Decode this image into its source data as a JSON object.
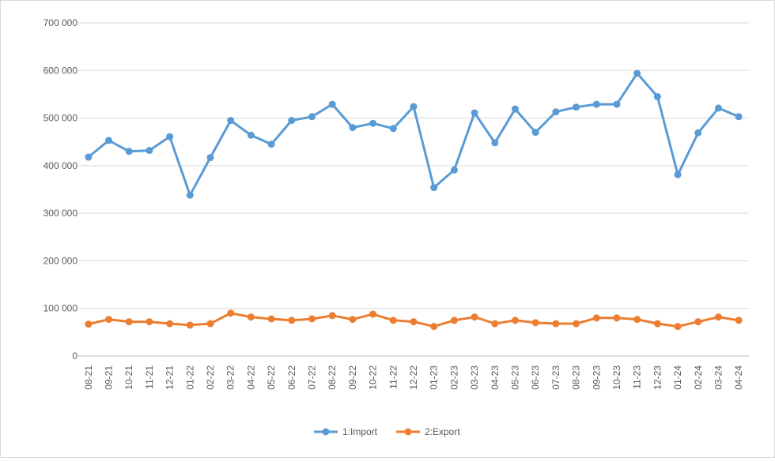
{
  "chart_data": {
    "type": "line",
    "title": "",
    "xlabel": "",
    "ylabel": "",
    "ylim": [
      0,
      700000
    ],
    "y_ticks": [
      0,
      100000,
      200000,
      300000,
      400000,
      500000,
      600000,
      700000
    ],
    "y_tick_labels": [
      "0",
      "100 000",
      "200 000",
      "300 000",
      "400 000",
      "500 000",
      "600 000",
      "700 000"
    ],
    "grid": "horizontal",
    "legend_position": "bottom",
    "categories": [
      "08-21",
      "09-21",
      "10-21",
      "11-21",
      "12-21",
      "01-22",
      "02-22",
      "03-22",
      "04-22",
      "05-22",
      "06-22",
      "07-22",
      "08-22",
      "09-22",
      "10-22",
      "11-22",
      "12-22",
      "01-23",
      "02-23",
      "03-23",
      "04-23",
      "05-23",
      "06-23",
      "07-23",
      "08-23",
      "09-23",
      "10-23",
      "11-23",
      "12-23",
      "01-24",
      "02-24",
      "03-24",
      "04-24"
    ],
    "series": [
      {
        "name": "1:Import",
        "color": "#5b9bd5",
        "values": [
          418000,
          453000,
          430000,
          432000,
          461000,
          338000,
          417000,
          495000,
          464000,
          445000,
          495000,
          503000,
          529000,
          480000,
          489000,
          478000,
          524000,
          354000,
          391000,
          511000,
          448000,
          519000,
          470000,
          513000,
          523000,
          529000,
          529000,
          594000,
          545000,
          381000,
          469000,
          521000,
          503000
        ]
      },
      {
        "name": "2:Export",
        "color": "#ed7d31",
        "values": [
          67000,
          77000,
          72000,
          72000,
          68000,
          65000,
          68000,
          90000,
          82000,
          78000,
          75000,
          78000,
          85000,
          77000,
          88000,
          75000,
          72000,
          62000,
          75000,
          82000,
          68000,
          75000,
          70000,
          68000,
          68000,
          80000,
          80000,
          77000,
          68000,
          62000,
          72000,
          82000,
          75000
        ]
      }
    ]
  }
}
